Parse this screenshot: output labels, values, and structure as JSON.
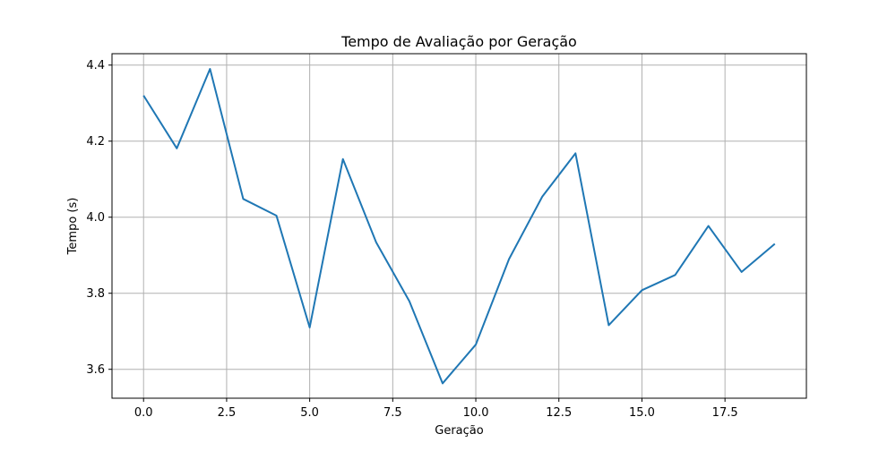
{
  "chart_data": {
    "type": "line",
    "title": "Tempo de Avaliação por Geração",
    "xlabel": "Geração",
    "ylabel": "Tempo (s)",
    "xlim": [
      -0.95,
      19.95
    ],
    "ylim": [
      3.524,
      4.43
    ],
    "xticks": [
      0.0,
      2.5,
      5.0,
      7.5,
      10.0,
      12.5,
      15.0,
      17.5
    ],
    "xtick_labels": [
      "0.0",
      "2.5",
      "5.0",
      "7.5",
      "10.0",
      "12.5",
      "15.0",
      "17.5"
    ],
    "yticks": [
      3.6,
      3.8,
      4.0,
      4.2,
      4.4
    ],
    "ytick_labels": [
      "3.6",
      "3.8",
      "4.0",
      "4.2",
      "4.4"
    ],
    "grid": true,
    "series": [
      {
        "color": "#1f77b4",
        "x": [
          0,
          1,
          2,
          3,
          4,
          5,
          6,
          7,
          8,
          9,
          10,
          11,
          12,
          13,
          14,
          15,
          16,
          17,
          18,
          19
        ],
        "y": [
          4.32,
          4.181,
          4.39,
          4.048,
          4.004,
          3.71,
          4.153,
          3.934,
          3.779,
          3.563,
          3.665,
          3.89,
          4.054,
          4.168,
          3.716,
          3.808,
          3.848,
          3.977,
          3.856,
          3.93
        ]
      }
    ]
  }
}
